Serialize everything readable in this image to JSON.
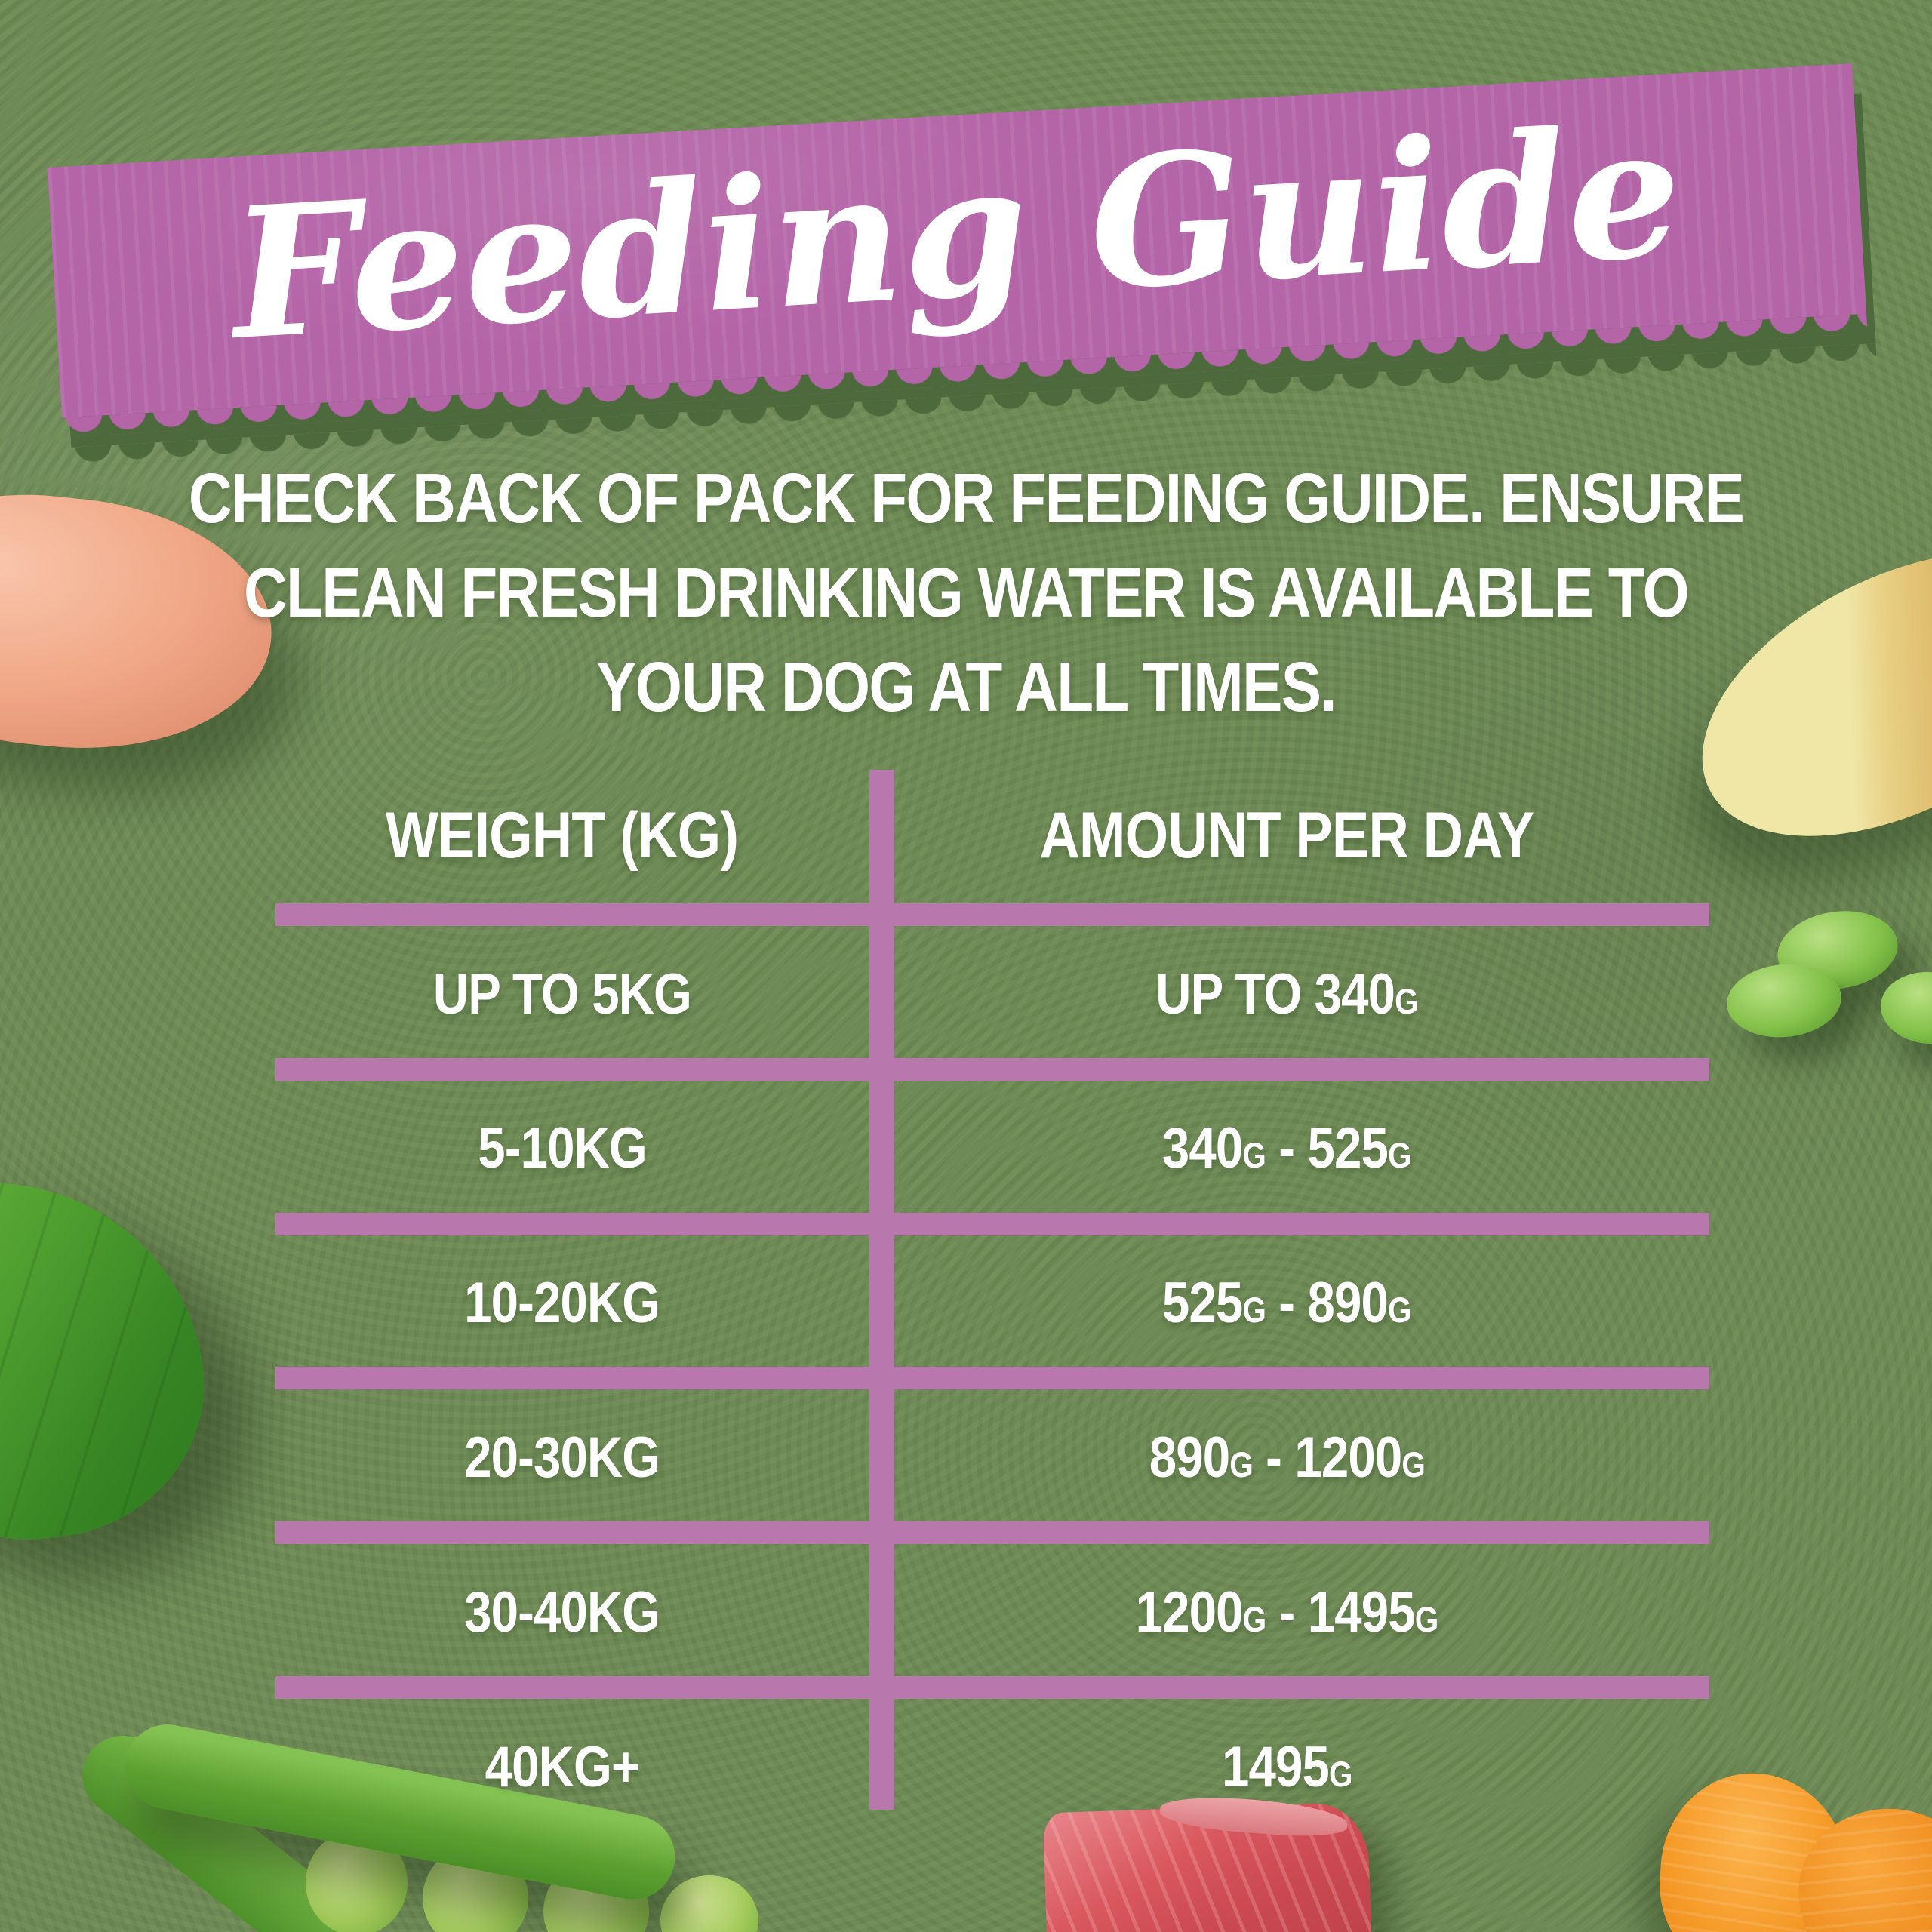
{
  "banner": {
    "title": "Feeding Guide"
  },
  "intro": {
    "lines": [
      "CHECK BACK OF PACK FOR FEEDING GUIDE. ENSURE",
      "CLEAN FRESH DRINKING WATER IS AVAILABLE TO",
      "YOUR DOG AT ALL TIMES."
    ]
  },
  "table": {
    "headers": [
      "WEIGHT (KG)",
      "AMOUNT PER DAY"
    ],
    "rows": [
      {
        "weight": "UP TO 5KG",
        "amount": "UP TO 340g"
      },
      {
        "weight": "5-10KG",
        "amount": "340g - 525g"
      },
      {
        "weight": "10-20KG",
        "amount": "525g - 890g"
      },
      {
        "weight": "20-30KG",
        "amount": "890g - 1200g"
      },
      {
        "weight": "30-40KG",
        "amount": "1200g - 1495g"
      },
      {
        "weight": "40KG+",
        "amount": "1495g"
      }
    ]
  },
  "decor": {
    "images": [
      "chicken-breast",
      "basil-leaf",
      "potato-wedge",
      "peas",
      "pea-pod",
      "raw-beef",
      "carrot-slices"
    ]
  },
  "colors": {
    "bg-green": "#6e8a56",
    "banner-purple": "#b465a8",
    "divider-purple": "#b878ae",
    "text-white": "#ffffff",
    "shadow-green": "#4d6a3c"
  }
}
